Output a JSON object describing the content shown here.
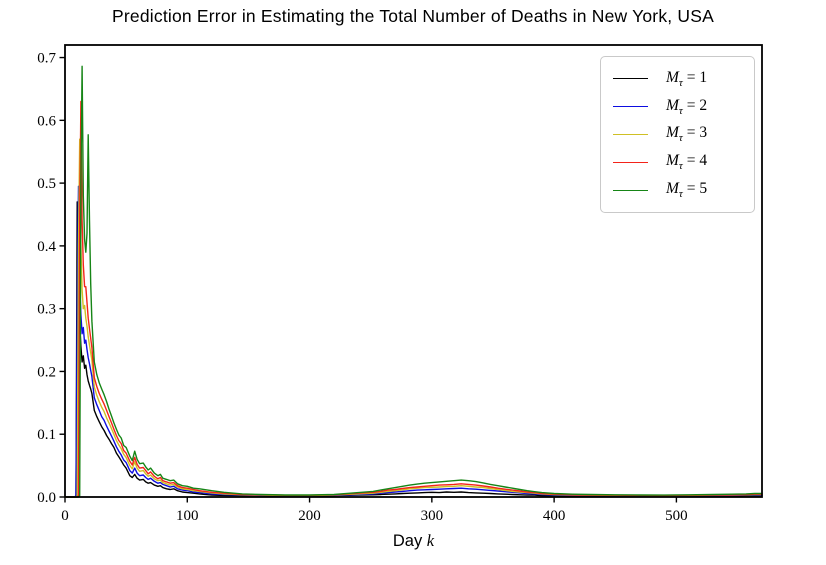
{
  "figure": {
    "title": "Prediction Error in Estimating the Total Number of Deaths in New York, USA",
    "xlabel_text": "Day",
    "xlabel_math": "k",
    "background": "#ffffff"
  },
  "legend": {
    "position": "upper right",
    "items": [
      {
        "id": "m1",
        "sym": "M",
        "sub": "τ",
        "eq": "= 1",
        "color": "#000000"
      },
      {
        "id": "m2",
        "sym": "M",
        "sub": "τ",
        "eq": "= 2",
        "color": "#0d0de0"
      },
      {
        "id": "m3",
        "sym": "M",
        "sub": "τ",
        "eq": "= 3",
        "color": "#cfc024"
      },
      {
        "id": "m4",
        "sym": "M",
        "sub": "τ",
        "eq": "= 4",
        "color": "#f3231a"
      },
      {
        "id": "m5",
        "sym": "M",
        "sub": "τ",
        "eq": "= 5",
        "color": "#168516"
      }
    ]
  },
  "chart_data": {
    "type": "line",
    "title": "Prediction Error in Estimating the Total Number of Deaths in New York, USA",
    "xlabel": "Day k",
    "ylabel": "",
    "grid": false,
    "legend_position": "upper right",
    "xlim": [
      0,
      570
    ],
    "ylim": [
      0,
      0.72
    ],
    "x_ticks": [
      {
        "value": 0,
        "label": "0"
      },
      {
        "value": 100,
        "label": "100"
      },
      {
        "value": 200,
        "label": "200"
      },
      {
        "value": 300,
        "label": "300"
      },
      {
        "value": 400,
        "label": "400"
      },
      {
        "value": 500,
        "label": "500"
      }
    ],
    "y_ticks": [
      {
        "value": 0.0,
        "label": "0.0"
      },
      {
        "value": 0.1,
        "label": "0.1"
      },
      {
        "value": 0.2,
        "label": "0.2"
      },
      {
        "value": 0.3,
        "label": "0.3"
      },
      {
        "value": 0.4,
        "label": "0.4"
      },
      {
        "value": 0.5,
        "label": "0.5"
      },
      {
        "value": 0.6,
        "label": "0.6"
      },
      {
        "value": 0.7,
        "label": "0.7"
      }
    ],
    "x": [
      0,
      4,
      8,
      9,
      10,
      11,
      12,
      13,
      14,
      15,
      16,
      17,
      18,
      19,
      20,
      21,
      22,
      24,
      26,
      28,
      30,
      32,
      34,
      36,
      38,
      40,
      42,
      44,
      46,
      48,
      50,
      53,
      55,
      57,
      59,
      61,
      64,
      66,
      68,
      70,
      73,
      76,
      78,
      80,
      83,
      86,
      89,
      92,
      96,
      100,
      105,
      110,
      120,
      130,
      145,
      160,
      180,
      200,
      220,
      240,
      252,
      258,
      264,
      270,
      276,
      282,
      288,
      294,
      300,
      306,
      312,
      318,
      324,
      330,
      336,
      342,
      348,
      354,
      360,
      366,
      372,
      378,
      384,
      390,
      400,
      415,
      430,
      450,
      470,
      490,
      510,
      530,
      545,
      557,
      564,
      570
    ],
    "series": [
      {
        "id": "m1",
        "name": "M_tau = 1",
        "color": "#000000",
        "values": [
          0,
          0,
          0,
          0.002,
          0.47,
          0.36,
          0.28,
          0.24,
          0.215,
          0.225,
          0.205,
          0.21,
          0.195,
          0.185,
          0.178,
          0.172,
          0.165,
          0.138,
          0.128,
          0.12,
          0.112,
          0.106,
          0.098,
          0.092,
          0.085,
          0.079,
          0.07,
          0.064,
          0.058,
          0.051,
          0.046,
          0.034,
          0.031,
          0.036,
          0.03,
          0.027,
          0.028,
          0.024,
          0.022,
          0.023,
          0.019,
          0.017,
          0.018,
          0.015,
          0.013,
          0.012,
          0.013,
          0.01,
          0.008,
          0.007,
          0.006,
          0.005,
          0.003,
          0.0025,
          0.002,
          0.002,
          0.0015,
          0.0015,
          0.002,
          0.003,
          0.0035,
          0.004,
          0.0045,
          0.005,
          0.0055,
          0.006,
          0.0065,
          0.007,
          0.0075,
          0.007,
          0.008,
          0.0075,
          0.008,
          0.007,
          0.0065,
          0.006,
          0.0055,
          0.005,
          0.0045,
          0.004,
          0.0035,
          0.003,
          0.003,
          0.002,
          0.002,
          0.0015,
          0.0015,
          0.001,
          0.001,
          0.001,
          0.001,
          0.0015,
          0.0015,
          0.002,
          0.002,
          0.002
        ]
      },
      {
        "id": "m2",
        "name": "M_tau = 2",
        "color": "#0d0de0",
        "values": [
          0,
          0,
          0,
          0.002,
          0.3,
          0.495,
          0.34,
          0.29,
          0.26,
          0.27,
          0.245,
          0.25,
          0.235,
          0.222,
          0.212,
          0.202,
          0.192,
          0.158,
          0.147,
          0.138,
          0.128,
          0.122,
          0.113,
          0.105,
          0.097,
          0.089,
          0.08,
          0.073,
          0.067,
          0.059,
          0.055,
          0.042,
          0.038,
          0.046,
          0.038,
          0.034,
          0.035,
          0.031,
          0.028,
          0.03,
          0.025,
          0.022,
          0.023,
          0.02,
          0.018,
          0.016,
          0.017,
          0.013,
          0.011,
          0.01,
          0.008,
          0.007,
          0.005,
          0.004,
          0.003,
          0.0025,
          0.002,
          0.002,
          0.0025,
          0.004,
          0.005,
          0.006,
          0.007,
          0.008,
          0.009,
          0.01,
          0.011,
          0.0115,
          0.012,
          0.0125,
          0.013,
          0.0135,
          0.014,
          0.013,
          0.0125,
          0.0115,
          0.0105,
          0.0095,
          0.0085,
          0.0075,
          0.0065,
          0.0055,
          0.005,
          0.004,
          0.003,
          0.0025,
          0.002,
          0.002,
          0.0015,
          0.0015,
          0.002,
          0.002,
          0.0025,
          0.003,
          0.003,
          0.003
        ]
      },
      {
        "id": "m3",
        "name": "M_tau = 3",
        "color": "#cfc024",
        "values": [
          0,
          0,
          0,
          0,
          0.002,
          0.4,
          0.57,
          0.4,
          0.33,
          0.3,
          0.305,
          0.285,
          0.272,
          0.255,
          0.242,
          0.23,
          0.218,
          0.175,
          0.162,
          0.152,
          0.143,
          0.136,
          0.126,
          0.118,
          0.109,
          0.1,
          0.09,
          0.083,
          0.077,
          0.068,
          0.063,
          0.05,
          0.045,
          0.056,
          0.046,
          0.041,
          0.042,
          0.037,
          0.033,
          0.035,
          0.029,
          0.026,
          0.027,
          0.023,
          0.021,
          0.019,
          0.02,
          0.016,
          0.013,
          0.012,
          0.01,
          0.009,
          0.0065,
          0.005,
          0.0035,
          0.003,
          0.0022,
          0.0022,
          0.003,
          0.005,
          0.006,
          0.0075,
          0.009,
          0.01,
          0.0115,
          0.013,
          0.014,
          0.015,
          0.0155,
          0.016,
          0.0165,
          0.017,
          0.018,
          0.017,
          0.016,
          0.015,
          0.0135,
          0.012,
          0.0105,
          0.009,
          0.008,
          0.007,
          0.006,
          0.005,
          0.004,
          0.003,
          0.0028,
          0.0025,
          0.0022,
          0.002,
          0.0025,
          0.003,
          0.003,
          0.0035,
          0.004,
          0.004
        ]
      },
      {
        "id": "m4",
        "name": "M_tau = 4",
        "color": "#f3231a",
        "values": [
          0,
          0,
          0,
          0,
          0,
          0.002,
          0.44,
          0.63,
          0.44,
          0.37,
          0.335,
          0.335,
          0.31,
          0.285,
          0.268,
          0.253,
          0.238,
          0.19,
          0.176,
          0.165,
          0.156,
          0.148,
          0.138,
          0.128,
          0.118,
          0.108,
          0.098,
          0.09,
          0.085,
          0.074,
          0.07,
          0.057,
          0.051,
          0.063,
          0.052,
          0.046,
          0.047,
          0.042,
          0.037,
          0.04,
          0.033,
          0.029,
          0.031,
          0.026,
          0.024,
          0.022,
          0.023,
          0.018,
          0.015,
          0.014,
          0.012,
          0.01,
          0.0075,
          0.006,
          0.004,
          0.0035,
          0.0028,
          0.0028,
          0.0035,
          0.006,
          0.0075,
          0.009,
          0.011,
          0.012,
          0.0135,
          0.015,
          0.016,
          0.017,
          0.018,
          0.019,
          0.0195,
          0.02,
          0.021,
          0.02,
          0.019,
          0.0175,
          0.016,
          0.014,
          0.0125,
          0.011,
          0.0095,
          0.008,
          0.007,
          0.0055,
          0.0045,
          0.0035,
          0.003,
          0.0028,
          0.0025,
          0.0022,
          0.0028,
          0.0032,
          0.0035,
          0.004,
          0.0045,
          0.0045
        ]
      },
      {
        "id": "m5",
        "name": "M_tau = 5",
        "color": "#168516",
        "values": [
          0,
          0,
          0,
          0,
          0,
          0,
          0.002,
          0.5,
          0.686,
          0.48,
          0.41,
          0.39,
          0.42,
          0.577,
          0.44,
          0.34,
          0.28,
          0.215,
          0.195,
          0.182,
          0.172,
          0.163,
          0.152,
          0.14,
          0.129,
          0.118,
          0.108,
          0.099,
          0.094,
          0.082,
          0.079,
          0.065,
          0.058,
          0.073,
          0.06,
          0.053,
          0.054,
          0.048,
          0.043,
          0.046,
          0.038,
          0.034,
          0.036,
          0.03,
          0.028,
          0.026,
          0.027,
          0.021,
          0.018,
          0.017,
          0.014,
          0.013,
          0.01,
          0.0075,
          0.005,
          0.004,
          0.0032,
          0.0032,
          0.004,
          0.007,
          0.009,
          0.011,
          0.013,
          0.015,
          0.017,
          0.019,
          0.0205,
          0.022,
          0.023,
          0.024,
          0.025,
          0.026,
          0.027,
          0.026,
          0.0245,
          0.0225,
          0.02,
          0.018,
          0.016,
          0.014,
          0.012,
          0.01,
          0.0085,
          0.007,
          0.0055,
          0.0045,
          0.004,
          0.0035,
          0.0032,
          0.003,
          0.0035,
          0.004,
          0.0045,
          0.005,
          0.0055,
          0.0055
        ]
      }
    ]
  }
}
